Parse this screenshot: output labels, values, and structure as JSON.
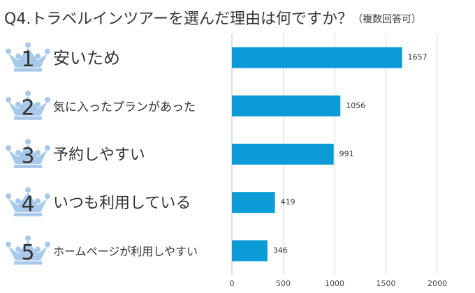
{
  "chart_data": {
    "type": "bar",
    "orientation": "horizontal",
    "title": "Q4.トラベルインツアーを選んだ理由は何ですか？",
    "subtitle": "（複数回答可）",
    "ranks": [
      "1",
      "2",
      "3",
      "4",
      "5"
    ],
    "categories": [
      "安いため",
      "気に入ったプランがあった",
      "予約しやすい",
      "いつも利用している",
      "ホームページが利用しやすい"
    ],
    "values": [
      1657,
      1056,
      991,
      419,
      346
    ],
    "color": "#0b9bd7",
    "xlim": [
      0,
      2000
    ],
    "xticks": [
      0,
      500,
      1000,
      1500,
      2000
    ],
    "grid": true
  }
}
